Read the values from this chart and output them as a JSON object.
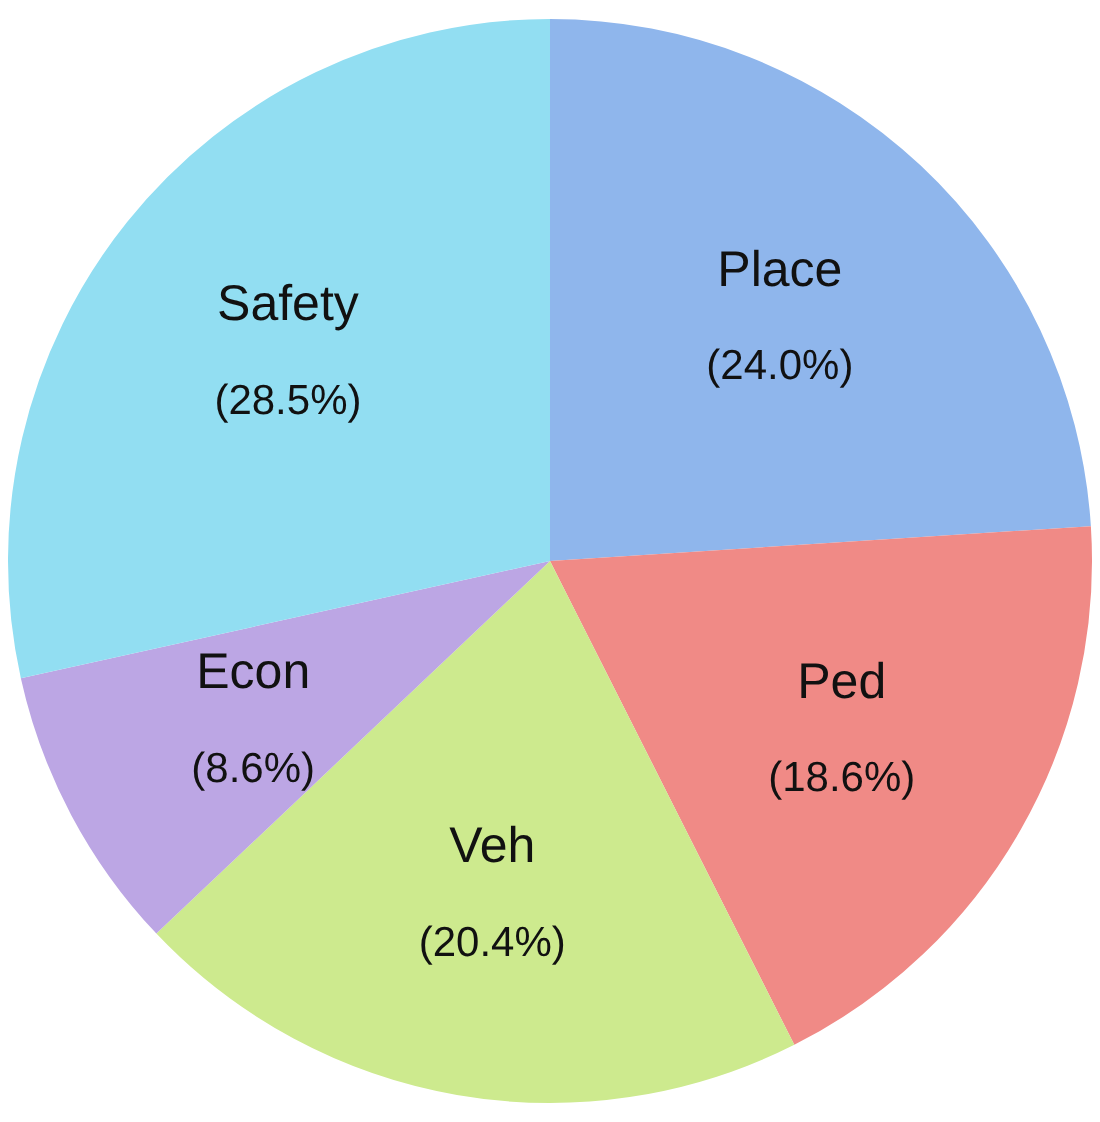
{
  "chart_data": {
    "type": "pie",
    "categories": [
      "Place",
      "Ped",
      "Veh",
      "Econ",
      "Safety"
    ],
    "values": [
      24.0,
      18.6,
      20.4,
      8.6,
      28.5
    ],
    "colors": [
      "#8fb6ec",
      "#f08a86",
      "#cdea8e",
      "#bca6e4",
      "#92def2"
    ],
    "value_labels": [
      "(24.0%)",
      "(18.6%)",
      "(20.4%)",
      "(8.6%)",
      "(28.5%)"
    ],
    "legend": false
  }
}
